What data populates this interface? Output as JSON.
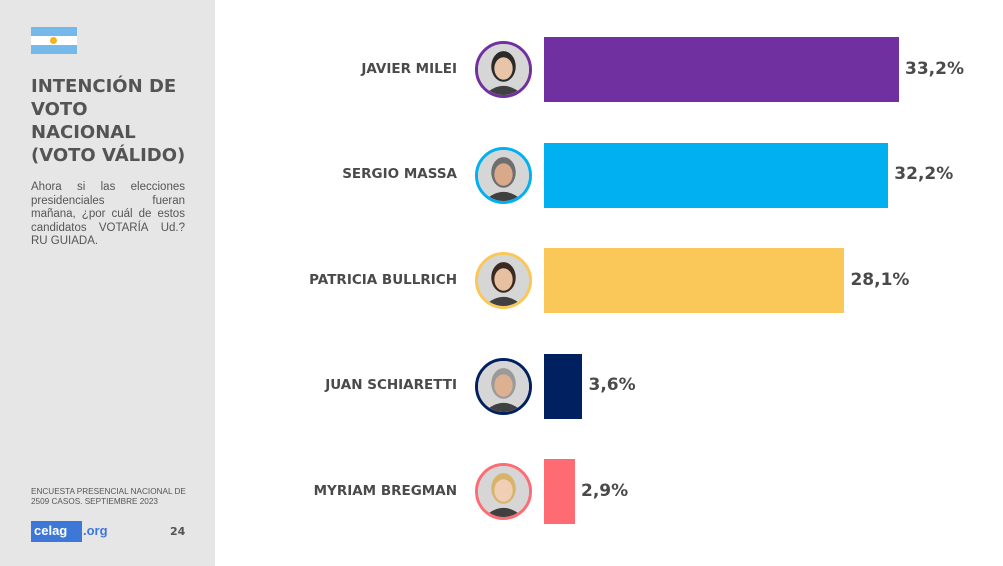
{
  "header": {
    "title_lines": [
      "INTENCIÓN DE",
      "VOTO",
      "NACIONAL",
      "(VOTO VÁLIDO)"
    ],
    "question_lines": [
      "Ahora si las elecciones",
      "presidenciales fueran",
      "mañana, ¿por cuál de estos",
      "candidatos VOTARÍA Ud.?",
      "RU GUIADA."
    ]
  },
  "footer": {
    "source_lines": [
      "ENCUESTA PRESENCIAL NACIONAL DE",
      "2509 CASOS. SEPTIEMBRE 2023"
    ],
    "logo_main": "celag",
    "logo_suffix": ".org",
    "page_number": "24"
  },
  "colors": {
    "sidebar_bg": "#e6e6e6",
    "text": "#4a4a4a",
    "logo_blue": "#3d78d8",
    "flag_sky": "#74b9ea",
    "flag_sun": "#f2b51e"
  },
  "chart_data": {
    "type": "bar",
    "orientation": "horizontal",
    "categories": [
      "JAVIER MILEI",
      "SERGIO MASSA",
      "PATRICIA BULLRICH",
      "JUAN SCHIARETTI",
      "MYRIAM BREGMAN"
    ],
    "values": [
      33.2,
      32.2,
      28.1,
      3.6,
      2.9
    ],
    "labels": [
      "33,2%",
      "32,2%",
      "28,1%",
      "3,6%",
      "2,9%"
    ],
    "colors": [
      "#7030a0",
      "#00b0f0",
      "#f9c858",
      "#002060",
      "#ff6b73"
    ],
    "unit": "%",
    "xlim": [
      0,
      33.2
    ],
    "grid": false,
    "legend": "none"
  }
}
